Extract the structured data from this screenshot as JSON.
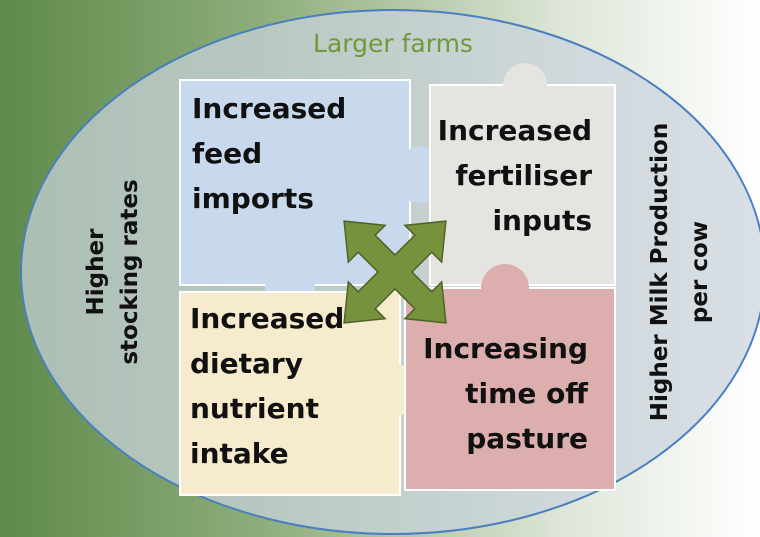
{
  "title": "Larger farms",
  "left_label": {
    "lines": [
      "Higher",
      "stocking rates"
    ]
  },
  "right_label": {
    "lines": [
      "Higher Milk Production",
      "per cow"
    ]
  },
  "pieces": [
    {
      "lines": [
        "Increased",
        "feed",
        "imports"
      ]
    },
    {
      "lines": [
        "Increased",
        "fertiliser",
        "inputs"
      ]
    },
    {
      "lines": [
        "Increased",
        "dietary",
        "nutrient",
        "intake"
      ]
    },
    {
      "lines": [
        "Increasing",
        "time off",
        "pasture"
      ]
    }
  ]
}
